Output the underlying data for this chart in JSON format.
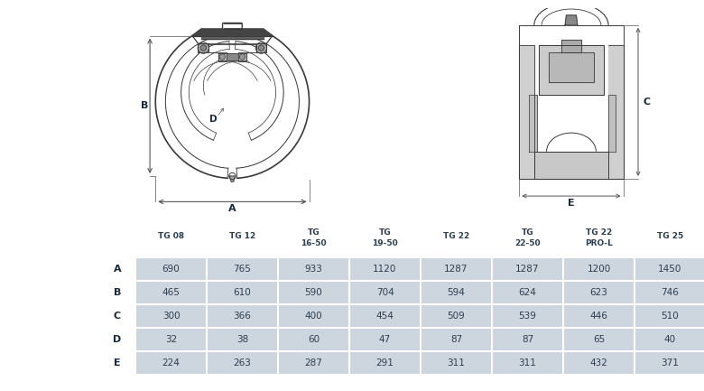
{
  "col_headers": [
    "TG 08",
    "TG 12",
    "TG\n16-50",
    "TG\n19-50",
    "TG 22",
    "TG\n22-50",
    "TG 22\nPRO-L",
    "TG 25"
  ],
  "row_headers": [
    "A",
    "B",
    "C",
    "D",
    "E"
  ],
  "table_data": [
    [
      690,
      765,
      933,
      1120,
      1287,
      1287,
      1200,
      1450
    ],
    [
      465,
      610,
      590,
      704,
      594,
      624,
      623,
      746
    ],
    [
      300,
      366,
      400,
      454,
      509,
      539,
      446,
      510
    ],
    [
      32,
      38,
      60,
      47,
      87,
      87,
      65,
      40
    ],
    [
      224,
      263,
      287,
      291,
      311,
      311,
      432,
      371
    ]
  ],
  "bg_color": "#ffffff",
  "cell_bg": "#cdd5df",
  "header_text_color": "#2c3e50",
  "cell_text_color": "#2c3e50",
  "lc": "#3a3a3a",
  "dc": "#555555"
}
